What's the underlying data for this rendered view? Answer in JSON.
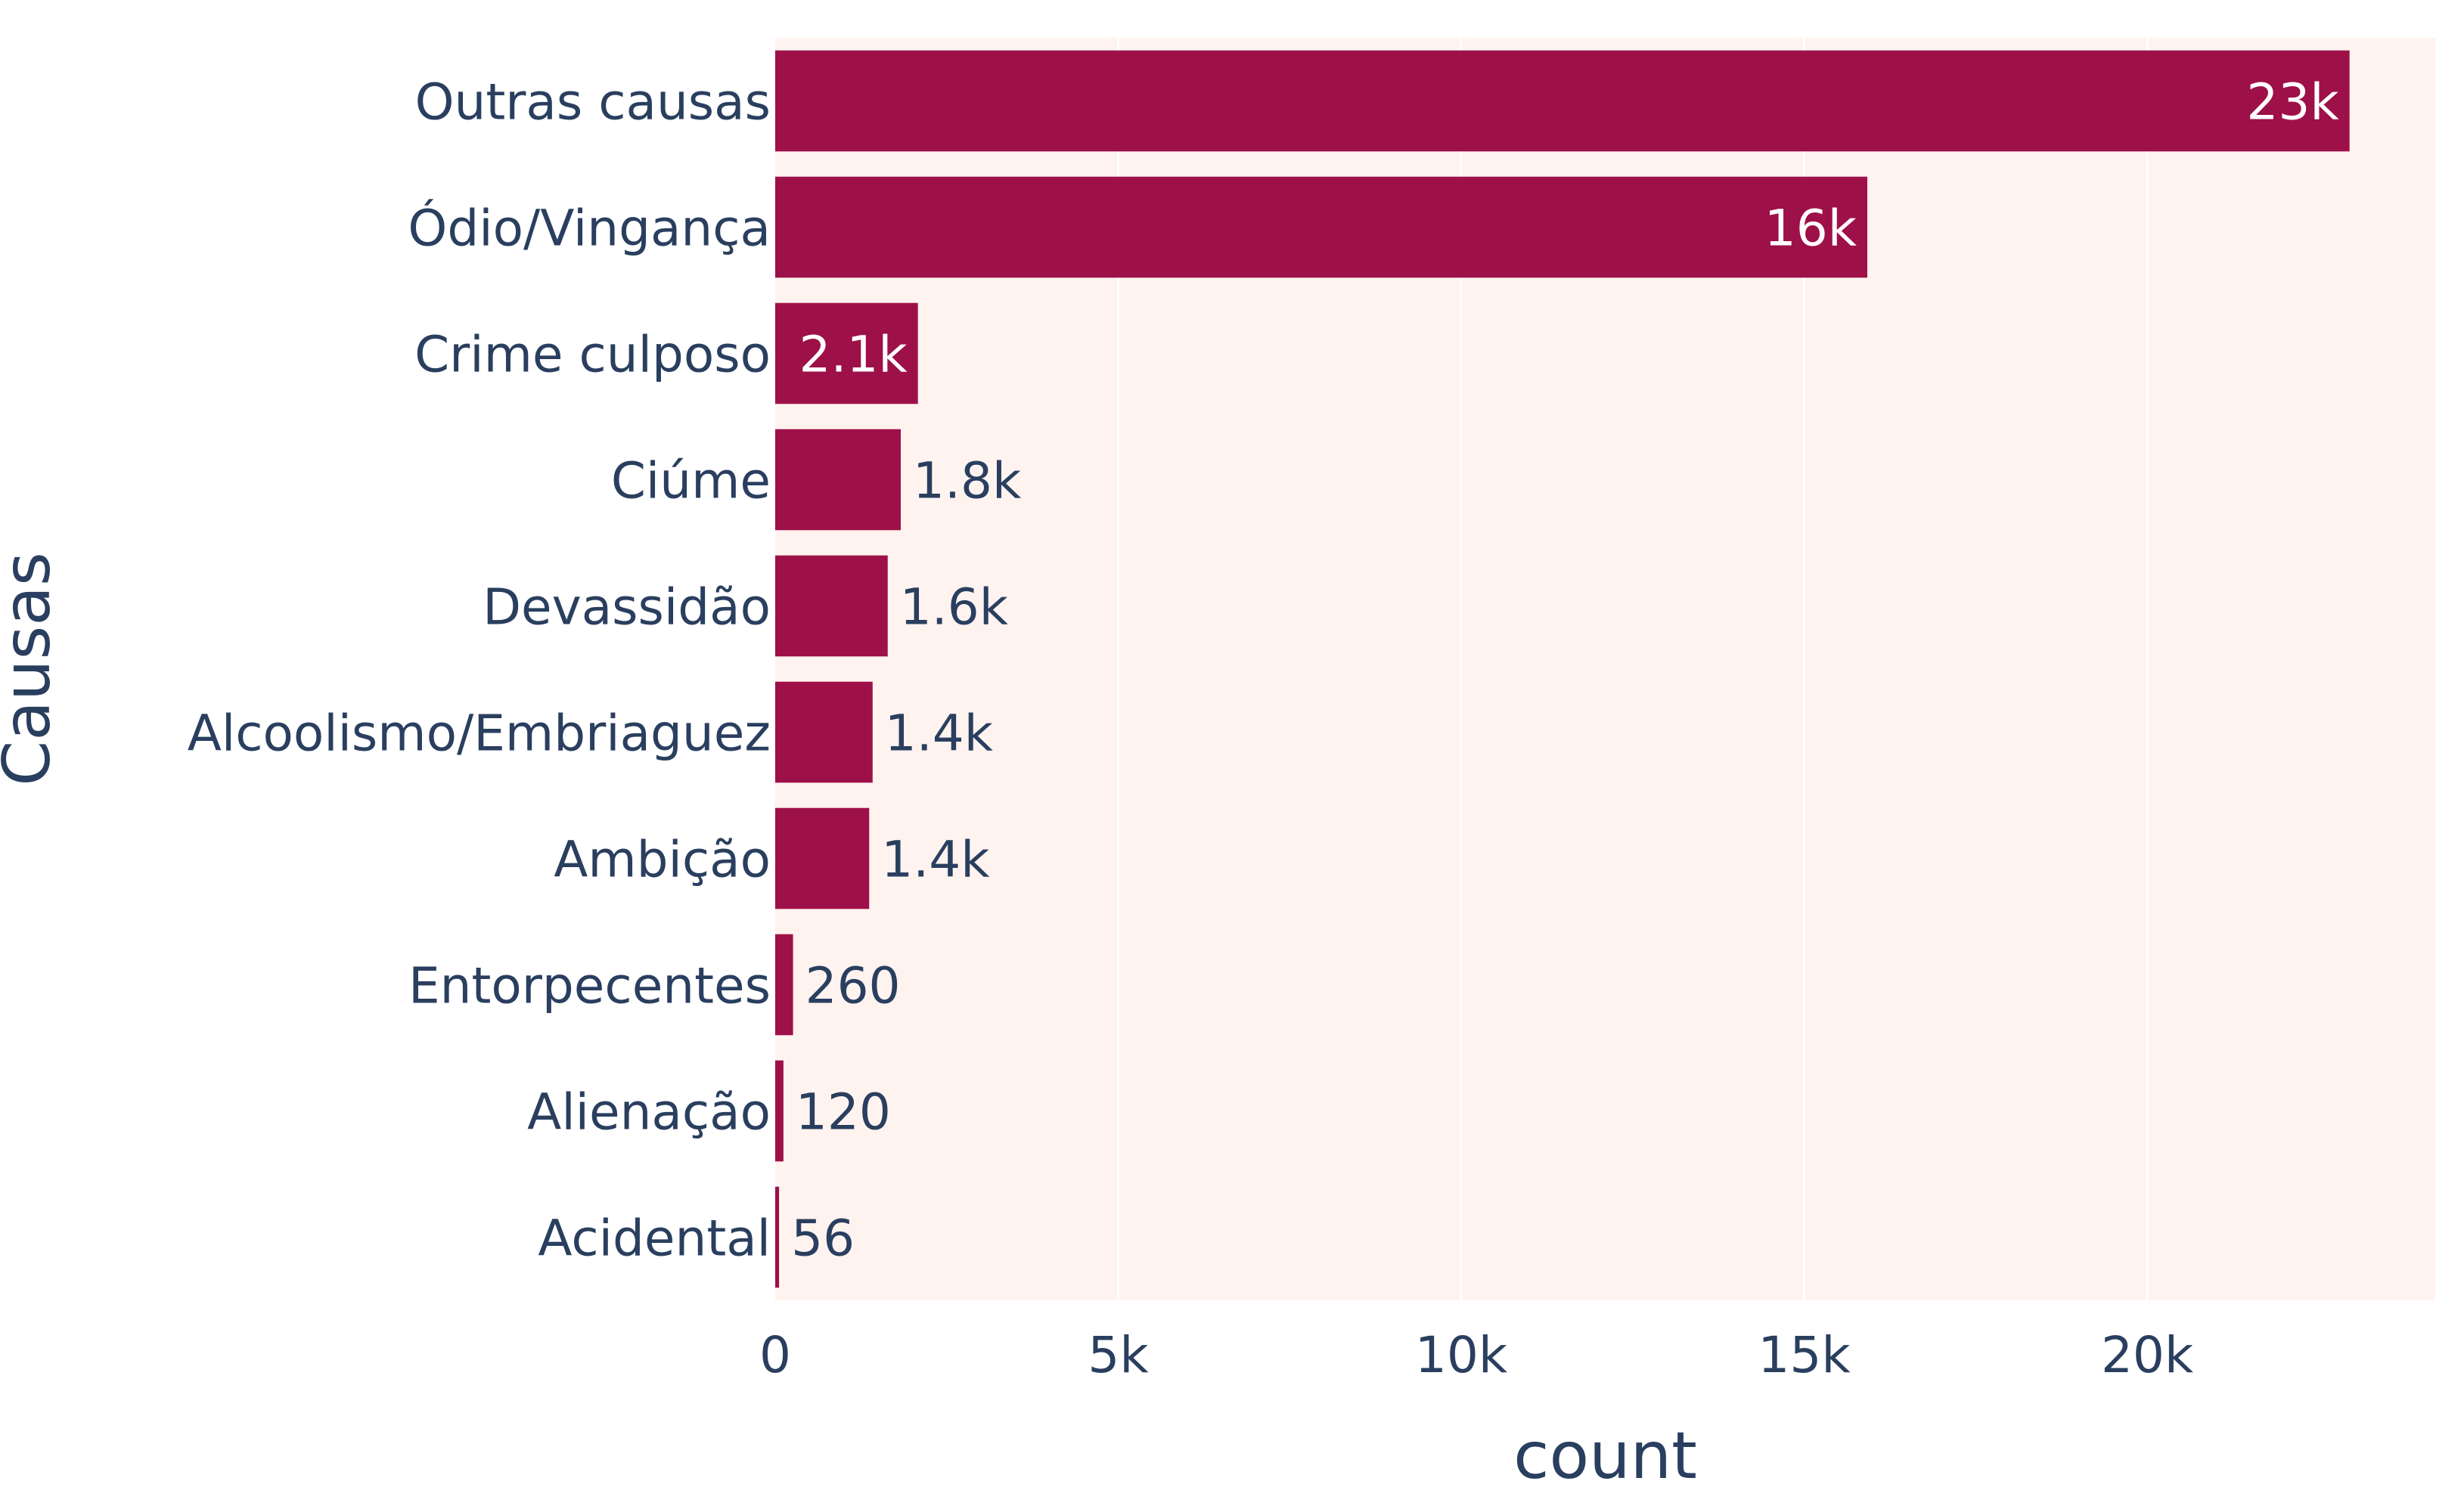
{
  "chart_data": {
    "type": "bar",
    "orientation": "horizontal",
    "categories": [
      "Outras causas",
      "Ódio/Vingança",
      "Crime culposo",
      "Ciúme",
      "Devassidão",
      "Alcoolismo/Embriaguez",
      "Ambição",
      "Entorpecentes",
      "Alienação",
      "Acidental"
    ],
    "values": [
      22950,
      15920,
      2080,
      1830,
      1640,
      1420,
      1370,
      260,
      120,
      56
    ],
    "data_labels": [
      "23k",
      "16k",
      "2.1k",
      "1.8k",
      "1.6k",
      "1.4k",
      "1.4k",
      "260",
      "120",
      "56"
    ],
    "xlabel": "count",
    "ylabel": "Causas",
    "xlim": [
      0,
      24200
    ],
    "xticks": [
      0,
      5000,
      10000,
      15000,
      20000
    ],
    "xtick_labels": [
      "0",
      "5k",
      "10k",
      "15k",
      "20k"
    ],
    "grid": true,
    "colors": {
      "bar": "#9e1048",
      "plot_background": "#fff3f0",
      "grid": "#ffffff",
      "text": "#2a3f5f",
      "label_inside": "#ffffff"
    }
  }
}
